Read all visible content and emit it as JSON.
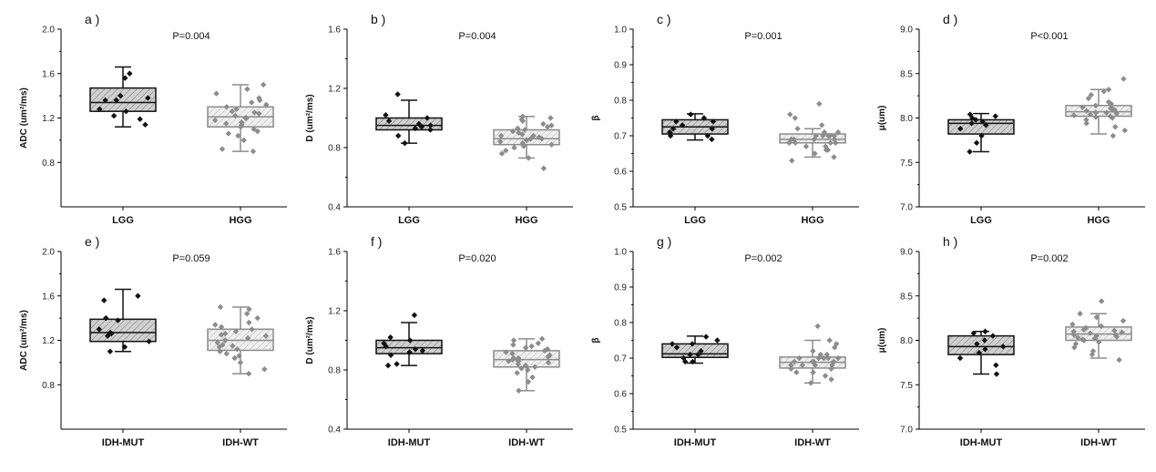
{
  "figure": {
    "description_free": true
  },
  "colors": {
    "group1": "#111111",
    "group2": "#8c8c8c",
    "box1_fill": "#cfcfcf",
    "box2_fill": "#ececec"
  },
  "chart_data": [
    {
      "type": "box",
      "panel": "a )",
      "pvalue": "P=0.004",
      "ylabel": "ADC (um²/ms)",
      "ylim": [
        0.4,
        2.0
      ],
      "yticks": [
        "0.8",
        "1.2",
        "1.6",
        "2.0"
      ],
      "ytick_values": [
        0.8,
        1.2,
        1.6,
        2.0
      ],
      "categories": [
        "LGG",
        "HGG"
      ],
      "groups": [
        {
          "name": "LGG",
          "q1": 1.26,
          "median": 1.34,
          "q3": 1.47,
          "whisker_low": 1.12,
          "whisker_high": 1.66,
          "points": [
            1.14,
            1.28,
            1.26,
            1.36,
            1.4,
            1.6,
            1.36,
            1.22,
            1.56,
            1.38,
            1.19
          ]
        },
        {
          "name": "HGG",
          "q1": 1.12,
          "median": 1.21,
          "q3": 1.3,
          "whisker_low": 0.9,
          "whisker_high": 1.5,
          "points": [
            0.9,
            1.0,
            1.04,
            1.06,
            1.08,
            1.1,
            1.12,
            1.14,
            1.16,
            1.18,
            1.2,
            1.2,
            1.22,
            1.24,
            1.26,
            1.28,
            1.3,
            1.32,
            1.34,
            1.36,
            1.38,
            1.42,
            1.46,
            1.5,
            1.15,
            1.25,
            0.92
          ]
        }
      ]
    },
    {
      "type": "box",
      "panel": "b )",
      "pvalue": "P=0.004",
      "ylabel": "D (um²/ms)",
      "ylim": [
        0.4,
        1.6
      ],
      "yticks": [
        "0.4",
        "0.8",
        "1.2",
        "1.6"
      ],
      "ytick_values": [
        0.4,
        0.8,
        1.2,
        1.6
      ],
      "categories": [
        "LGG",
        "HGG"
      ],
      "groups": [
        {
          "name": "LGG",
          "q1": 0.92,
          "median": 0.95,
          "q3": 1.0,
          "whisker_low": 0.83,
          "whisker_high": 1.12,
          "points": [
            0.83,
            0.88,
            0.92,
            0.93,
            0.95,
            0.96,
            0.98,
            1.0,
            1.02,
            1.16,
            0.94
          ]
        },
        {
          "name": "HGG",
          "q1": 0.82,
          "median": 0.86,
          "q3": 0.92,
          "whisker_low": 0.73,
          "whisker_high": 1.01,
          "points": [
            0.66,
            0.73,
            0.76,
            0.78,
            0.8,
            0.82,
            0.83,
            0.84,
            0.85,
            0.86,
            0.87,
            0.88,
            0.88,
            0.89,
            0.9,
            0.91,
            0.92,
            0.93,
            0.94,
            0.96,
            0.98,
            1.0,
            1.01,
            0.86,
            0.81,
            0.95,
            0.99
          ]
        }
      ]
    },
    {
      "type": "box",
      "panel": "c )",
      "pvalue": "P=0.001",
      "ylabel": "β",
      "ylim": [
        0.5,
        1.0
      ],
      "yticks": [
        "0.5",
        "0.6",
        "0.7",
        "0.8",
        "0.9",
        "1.0"
      ],
      "ytick_values": [
        0.5,
        0.6,
        0.7,
        0.8,
        0.9,
        1.0
      ],
      "categories": [
        "LGG",
        "HGG"
      ],
      "groups": [
        {
          "name": "LGG",
          "q1": 0.705,
          "median": 0.725,
          "q3": 0.745,
          "whisker_low": 0.688,
          "whisker_high": 0.762,
          "points": [
            0.69,
            0.7,
            0.71,
            0.72,
            0.72,
            0.73,
            0.74,
            0.75,
            0.76,
            0.7,
            0.74
          ]
        },
        {
          "name": "HGG",
          "q1": 0.68,
          "median": 0.69,
          "q3": 0.705,
          "whisker_low": 0.64,
          "whisker_high": 0.72,
          "points": [
            0.63,
            0.64,
            0.65,
            0.66,
            0.67,
            0.67,
            0.68,
            0.68,
            0.68,
            0.69,
            0.69,
            0.69,
            0.69,
            0.7,
            0.7,
            0.7,
            0.7,
            0.71,
            0.71,
            0.72,
            0.73,
            0.75,
            0.76,
            0.79,
            0.66,
            0.7,
            0.68
          ]
        }
      ]
    },
    {
      "type": "box",
      "panel": "d )",
      "pvalue": "P<0.001",
      "ylabel": "μ(um)",
      "ylim": [
        7.0,
        9.0
      ],
      "yticks": [
        "7.0",
        "7.5",
        "8.0",
        "8.5",
        "9.0"
      ],
      "ytick_values": [
        7.0,
        7.5,
        8.0,
        8.5,
        9.0
      ],
      "categories": [
        "LGG",
        "HGG"
      ],
      "groups": [
        {
          "name": "LGG",
          "q1": 7.82,
          "median": 7.94,
          "q3": 7.98,
          "whisker_low": 7.62,
          "whisker_high": 8.05,
          "points": [
            7.62,
            7.72,
            7.8,
            7.88,
            7.92,
            7.94,
            7.96,
            7.98,
            8.0,
            8.02,
            8.04
          ]
        },
        {
          "name": "HGG",
          "q1": 8.02,
          "median": 8.07,
          "q3": 8.14,
          "whisker_low": 7.82,
          "whisker_high": 8.32,
          "points": [
            7.8,
            7.86,
            7.9,
            7.94,
            7.98,
            8.0,
            8.01,
            8.02,
            8.03,
            8.04,
            8.05,
            8.06,
            8.07,
            8.08,
            8.09,
            8.1,
            8.11,
            8.12,
            8.14,
            8.16,
            8.18,
            8.22,
            8.26,
            8.3,
            8.32,
            8.44,
            8.06
          ]
        }
      ]
    },
    {
      "type": "box",
      "panel": "e )",
      "pvalue": "P=0.059",
      "ylabel": "ADC (um²/ms)",
      "ylim": [
        0.4,
        2.0
      ],
      "yticks": [
        "0.8",
        "1.2",
        "1.6",
        "2.0"
      ],
      "ytick_values": [
        0.8,
        1.2,
        1.6,
        2.0
      ],
      "categories": [
        "IDH-MUT",
        "IDH-WT"
      ],
      "groups": [
        {
          "name": "IDH-MUT",
          "q1": 1.19,
          "median": 1.27,
          "q3": 1.39,
          "whisker_low": 1.1,
          "whisker_high": 1.66,
          "points": [
            1.1,
            1.14,
            1.19,
            1.24,
            1.26,
            1.27,
            1.3,
            1.38,
            1.4,
            1.56,
            1.6
          ]
        },
        {
          "name": "IDH-WT",
          "q1": 1.11,
          "median": 1.2,
          "q3": 1.3,
          "whisker_low": 0.9,
          "whisker_high": 1.5,
          "points": [
            0.9,
            0.94,
            1.0,
            1.04,
            1.06,
            1.08,
            1.1,
            1.12,
            1.14,
            1.16,
            1.18,
            1.2,
            1.2,
            1.22,
            1.24,
            1.26,
            1.28,
            1.3,
            1.32,
            1.34,
            1.36,
            1.4,
            1.44,
            1.48,
            1.5,
            1.15,
            1.25
          ]
        }
      ]
    },
    {
      "type": "box",
      "panel": "f )",
      "pvalue": "P=0.020",
      "ylabel": "D (um²/ms)",
      "ylim": [
        0.4,
        1.6
      ],
      "yticks": [
        "0.4",
        "0.8",
        "1.2",
        "1.6"
      ],
      "ytick_values": [
        0.4,
        0.8,
        1.2,
        1.6
      ],
      "categories": [
        "IDH-MUT",
        "IDH-WT"
      ],
      "groups": [
        {
          "name": "IDH-MUT",
          "q1": 0.91,
          "median": 0.95,
          "q3": 1.0,
          "whisker_low": 0.83,
          "whisker_high": 1.12,
          "points": [
            0.83,
            0.84,
            0.9,
            0.92,
            0.93,
            0.94,
            0.96,
            0.98,
            1.0,
            1.02,
            1.17
          ]
        },
        {
          "name": "IDH-WT",
          "q1": 0.82,
          "median": 0.87,
          "q3": 0.93,
          "whisker_low": 0.66,
          "whisker_high": 1.01,
          "points": [
            0.66,
            0.72,
            0.75,
            0.78,
            0.8,
            0.82,
            0.83,
            0.84,
            0.85,
            0.86,
            0.87,
            0.88,
            0.89,
            0.9,
            0.91,
            0.92,
            0.93,
            0.94,
            0.95,
            0.96,
            0.98,
            1.0,
            1.01,
            0.86,
            0.81,
            0.97,
            0.88
          ]
        }
      ]
    },
    {
      "type": "box",
      "panel": "g )",
      "pvalue": "P=0.002",
      "ylabel": "β",
      "ylim": [
        0.5,
        1.0
      ],
      "yticks": [
        "0.5",
        "0.6",
        "0.7",
        "0.8",
        "0.9",
        "1.0"
      ],
      "ytick_values": [
        0.5,
        0.6,
        0.7,
        0.8,
        0.9,
        1.0
      ],
      "categories": [
        "IDH-MUT",
        "IDH-WT"
      ],
      "groups": [
        {
          "name": "IDH-MUT",
          "q1": 0.702,
          "median": 0.712,
          "q3": 0.74,
          "whisker_low": 0.686,
          "whisker_high": 0.762,
          "points": [
            0.69,
            0.69,
            0.7,
            0.71,
            0.72,
            0.73,
            0.74,
            0.74,
            0.75,
            0.76,
            0.71
          ]
        },
        {
          "name": "IDH-WT",
          "q1": 0.672,
          "median": 0.688,
          "q3": 0.703,
          "whisker_low": 0.63,
          "whisker_high": 0.75,
          "points": [
            0.63,
            0.64,
            0.65,
            0.66,
            0.67,
            0.67,
            0.68,
            0.68,
            0.68,
            0.69,
            0.69,
            0.69,
            0.69,
            0.7,
            0.7,
            0.7,
            0.7,
            0.71,
            0.71,
            0.72,
            0.73,
            0.74,
            0.75,
            0.79,
            0.66,
            0.7,
            0.68
          ]
        }
      ]
    },
    {
      "type": "box",
      "panel": "h )",
      "pvalue": "P=0.002",
      "ylabel": "μ(um)",
      "ylim": [
        7.0,
        9.0
      ],
      "yticks": [
        "7.0",
        "7.5",
        "8.0",
        "8.5",
        "9.0"
      ],
      "ytick_values": [
        7.0,
        7.5,
        8.0,
        8.5,
        9.0
      ],
      "categories": [
        "IDH-MUT",
        "IDH-WT"
      ],
      "groups": [
        {
          "name": "IDH-MUT",
          "q1": 7.84,
          "median": 7.93,
          "q3": 8.05,
          "whisker_low": 7.62,
          "whisker_high": 8.1,
          "points": [
            7.62,
            7.72,
            7.8,
            7.86,
            7.9,
            7.93,
            7.96,
            8.0,
            8.05,
            8.08,
            8.1
          ]
        },
        {
          "name": "IDH-WT",
          "q1": 8.0,
          "median": 8.07,
          "q3": 8.15,
          "whisker_low": 7.8,
          "whisker_high": 8.3,
          "points": [
            7.78,
            7.84,
            7.88,
            7.92,
            7.96,
            7.98,
            8.0,
            8.01,
            8.02,
            8.03,
            8.04,
            8.05,
            8.06,
            8.07,
            8.08,
            8.09,
            8.1,
            8.11,
            8.12,
            8.14,
            8.16,
            8.18,
            8.22,
            8.26,
            8.3,
            8.44,
            8.06
          ]
        }
      ]
    }
  ]
}
